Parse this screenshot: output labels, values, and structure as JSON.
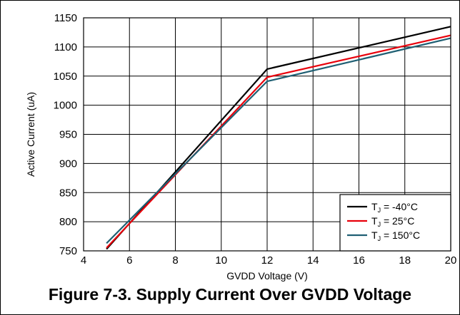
{
  "caption": "Figure 7-3. Supply Current Over GVDD Voltage",
  "chart_data": {
    "type": "line",
    "xlabel": "GVDD Voltage (V)",
    "ylabel": "Active Current (uA)",
    "xlim": [
      4,
      20
    ],
    "ylim": [
      750,
      1150
    ],
    "xticks": [
      4,
      6,
      8,
      10,
      12,
      14,
      16,
      18,
      20
    ],
    "yticks": [
      750,
      800,
      850,
      900,
      950,
      1000,
      1050,
      1100,
      1150
    ],
    "grid": true,
    "legend_position": "bottom-right",
    "series": [
      {
        "name_main": "T",
        "name_sub": "J",
        "name_rest": " = -40°C",
        "color": "#000000",
        "points": [
          [
            5,
            753
          ],
          [
            12,
            1062
          ],
          [
            20,
            1135
          ]
        ]
      },
      {
        "name_main": "T",
        "name_sub": "J",
        "name_rest": " = 25°C",
        "color": "#e8000b",
        "points": [
          [
            5,
            755
          ],
          [
            12,
            1048
          ],
          [
            20,
            1120
          ]
        ]
      },
      {
        "name_main": "T",
        "name_sub": "J",
        "name_rest": " = 150°C",
        "color": "#1f5f73",
        "points": [
          [
            5,
            763
          ],
          [
            12,
            1041
          ],
          [
            20,
            1115
          ]
        ]
      }
    ]
  }
}
